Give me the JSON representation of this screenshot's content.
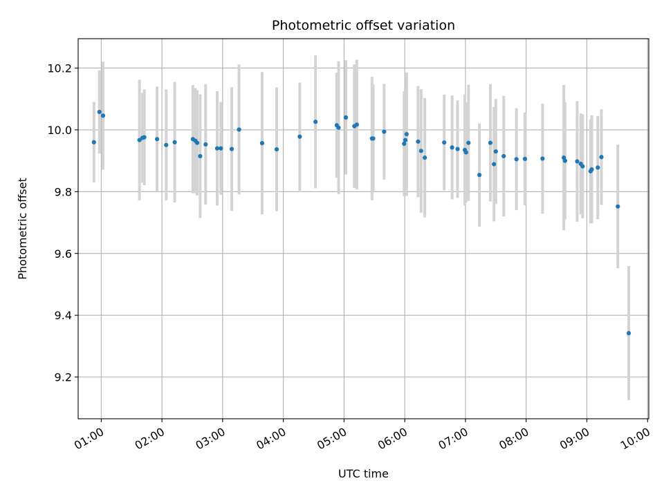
{
  "chart_data": {
    "type": "scatter",
    "title": "Photometric offset variation",
    "xlabel": "UTC time",
    "ylabel": "Photometric offset",
    "x_unit": "hours UTC",
    "xlim": [
      0.62,
      10.02
    ],
    "ylim": [
      9.065,
      10.295
    ],
    "xticks": [
      1,
      2,
      3,
      4,
      5,
      6,
      7,
      8,
      9,
      10
    ],
    "xtick_labels": [
      "01:00",
      "02:00",
      "03:00",
      "04:00",
      "05:00",
      "06:00",
      "07:00",
      "08:00",
      "09:00",
      "10:00"
    ],
    "yticks": [
      9.2,
      9.4,
      9.6,
      9.8,
      10.0,
      10.2
    ],
    "ytick_labels": [
      "9.2",
      "9.4",
      "9.6",
      "9.8",
      "10.0",
      "10.2"
    ],
    "grid": true,
    "legend": "none",
    "point_color": "#1f77b4",
    "errorbar_color": "#d3d3d3",
    "series": [
      {
        "x": [
          0.88,
          0.97,
          1.03,
          1.63,
          1.68,
          1.71,
          1.92,
          2.07,
          2.21,
          2.51,
          2.55,
          2.58,
          2.63,
          2.72,
          2.91,
          2.97,
          3.15,
          3.27,
          3.65,
          3.89,
          4.27,
          4.53,
          4.88,
          4.91,
          5.03,
          5.17,
          5.21,
          5.46,
          5.48,
          5.66,
          5.99,
          6.01,
          6.03,
          6.22,
          6.27,
          6.33,
          6.65,
          6.78,
          6.87,
          6.99,
          7.01,
          7.05,
          7.23,
          7.41,
          7.47,
          7.5,
          7.63,
          7.84,
          7.98,
          8.27,
          8.62,
          8.64,
          8.84,
          8.9,
          8.93,
          9.06,
          9.08,
          9.18,
          9.24,
          9.51,
          9.69
        ],
        "y": [
          9.96,
          10.058,
          10.046,
          9.967,
          9.974,
          9.976,
          9.97,
          9.951,
          9.96,
          9.97,
          9.965,
          9.958,
          9.915,
          9.953,
          9.94,
          9.94,
          9.938,
          10.001,
          9.957,
          9.937,
          9.978,
          10.026,
          10.015,
          10.007,
          10.04,
          10.012,
          10.017,
          9.972,
          9.972,
          9.994,
          9.955,
          9.967,
          9.986,
          9.962,
          9.932,
          9.91,
          9.959,
          9.943,
          9.938,
          9.935,
          9.927,
          9.958,
          9.854,
          9.958,
          9.889,
          9.93,
          9.915,
          9.905,
          9.906,
          9.907,
          9.91,
          9.9,
          9.898,
          9.89,
          9.882,
          9.866,
          9.872,
          9.878,
          9.912,
          9.752,
          9.342
        ],
        "yerr": [
          0.13,
          0.135,
          0.175,
          0.195,
          0.145,
          0.155,
          0.17,
          0.18,
          0.195,
          0.175,
          0.17,
          0.17,
          0.2,
          0.195,
          0.185,
          0.15,
          0.2,
          0.21,
          0.23,
          0.2,
          0.175,
          0.215,
          0.17,
          0.215,
          0.185,
          0.2,
          0.21,
          0.2,
          0.175,
          0.155,
          0.17,
          0.165,
          0.2,
          0.18,
          0.2,
          0.193,
          0.155,
          0.168,
          0.158,
          0.18,
          0.162,
          0.188,
          0.167,
          0.19,
          0.185,
          0.17,
          0.195,
          0.165,
          0.15,
          0.178,
          0.235,
          0.19,
          0.195,
          0.163,
          0.168,
          0.168,
          0.175,
          0.167,
          0.155,
          0.2,
          0.217
        ]
      }
    ]
  }
}
